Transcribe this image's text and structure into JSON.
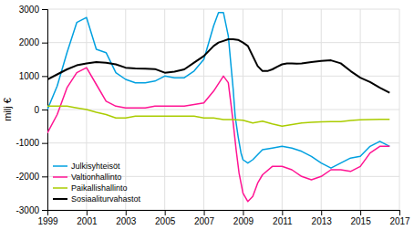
{
  "chart_data": {
    "type": "line",
    "ylabel": "milj €",
    "xlim": [
      1999,
      2017
    ],
    "ylim": [
      -3000,
      3000
    ],
    "xticks": [
      1999,
      2001,
      2003,
      2005,
      2007,
      2009,
      2011,
      2013,
      2015,
      2017
    ],
    "yticks": [
      -3000,
      -2000,
      -1000,
      0,
      1000,
      2000,
      3000
    ],
    "grid": true,
    "legend": "lower left",
    "series": [
      {
        "name": "Julkisyhteisöt",
        "color": "#00a0e0",
        "x": [
          1999,
          1999.5,
          2000,
          2000.5,
          2001,
          2001.5,
          2002,
          2002.5,
          2003,
          2003.5,
          2004,
          2004.5,
          2005,
          2005.5,
          2006,
          2006.5,
          2007,
          2007.25,
          2007.5,
          2007.75,
          2008,
          2008.25,
          2008.5,
          2008.6,
          2008.75,
          2008.9,
          2009,
          2009.25,
          2009.5,
          2009.75,
          2010,
          2010.5,
          2011,
          2011.5,
          2012,
          2012.5,
          2013,
          2013.5,
          2014,
          2014.5,
          2015,
          2015.5,
          2016,
          2016.5
        ],
        "values": [
          0,
          700,
          1700,
          2600,
          2750,
          1800,
          1700,
          1100,
          900,
          800,
          800,
          850,
          1000,
          950,
          950,
          1150,
          1500,
          2000,
          2500,
          2900,
          2900,
          2200,
          600,
          -200,
          -800,
          -1300,
          -1500,
          -1600,
          -1500,
          -1350,
          -1200,
          -1150,
          -1100,
          -1150,
          -1250,
          -1400,
          -1600,
          -1750,
          -1600,
          -1450,
          -1400,
          -1100,
          -950,
          -1100
        ]
      },
      {
        "name": "Valtionhallinto",
        "color": "#ff1493",
        "x": [
          1999,
          1999.5,
          2000,
          2000.5,
          2001,
          2001.5,
          2002,
          2002.5,
          2003,
          2003.5,
          2004,
          2004.5,
          2005,
          2005.5,
          2006,
          2006.5,
          2007,
          2007.5,
          2008,
          2008.25,
          2008.4,
          2008.5,
          2008.65,
          2008.8,
          2009,
          2009.25,
          2009.5,
          2009.75,
          2010,
          2010.5,
          2011,
          2011.5,
          2012,
          2012.5,
          2013,
          2013.5,
          2014,
          2014.5,
          2015,
          2015.5,
          2016,
          2016.5
        ],
        "values": [
          -700,
          -150,
          650,
          1100,
          1250,
          750,
          250,
          100,
          50,
          50,
          50,
          100,
          100,
          100,
          100,
          150,
          200,
          550,
          1000,
          800,
          100,
          -400,
          -1200,
          -1900,
          -2500,
          -2750,
          -2600,
          -2200,
          -1950,
          -1700,
          -1700,
          -1800,
          -2000,
          -2100,
          -2000,
          -1800,
          -1800,
          -1850,
          -1700,
          -1300,
          -1100,
          -1100
        ]
      },
      {
        "name": "Paikallishallinto",
        "color": "#aacc00",
        "x": [
          1999,
          1999.5,
          2000,
          2000.5,
          2001,
          2001.5,
          2002,
          2002.5,
          2003,
          2003.5,
          2004,
          2004.5,
          2005,
          2005.5,
          2006,
          2006.5,
          2007,
          2007.5,
          2008,
          2008.5,
          2009,
          2009.5,
          2010,
          2010.5,
          2011,
          2011.5,
          2012,
          2012.5,
          2013,
          2013.5,
          2014,
          2014.5,
          2015,
          2015.5,
          2016,
          2016.5
        ],
        "values": [
          100,
          100,
          100,
          50,
          0,
          -80,
          -150,
          -250,
          -250,
          -200,
          -200,
          -200,
          -200,
          -200,
          -200,
          -200,
          -250,
          -250,
          -300,
          -300,
          -320,
          -400,
          -350,
          -430,
          -500,
          -450,
          -400,
          -380,
          -370,
          -360,
          -360,
          -330,
          -310,
          -300,
          -290,
          -290
        ]
      },
      {
        "name": "Sosiaaliturvahastot",
        "color": "#000000",
        "x": [
          1999,
          1999.5,
          2000,
          2000.5,
          2001,
          2001.5,
          2002,
          2002.5,
          2003,
          2003.5,
          2004,
          2004.5,
          2005,
          2005.5,
          2006,
          2006.5,
          2007,
          2007.25,
          2007.5,
          2007.75,
          2008,
          2008.25,
          2008.5,
          2008.75,
          2009,
          2009.25,
          2009.5,
          2009.75,
          2010,
          2010.25,
          2010.5,
          2010.75,
          2011,
          2011.25,
          2011.5,
          2011.75,
          2012,
          2012.5,
          2013,
          2013.5,
          2014,
          2014.5,
          2015,
          2015.5,
          2016,
          2016.5
        ],
        "values": [
          900,
          1050,
          1200,
          1320,
          1380,
          1420,
          1400,
          1350,
          1250,
          1230,
          1220,
          1210,
          1100,
          1130,
          1200,
          1400,
          1600,
          1750,
          1900,
          2000,
          2050,
          2100,
          2100,
          2080,
          2000,
          1900,
          1600,
          1300,
          1150,
          1150,
          1200,
          1280,
          1350,
          1380,
          1380,
          1370,
          1380,
          1420,
          1450,
          1470,
          1380,
          1150,
          950,
          820,
          650,
          500
        ]
      }
    ]
  }
}
